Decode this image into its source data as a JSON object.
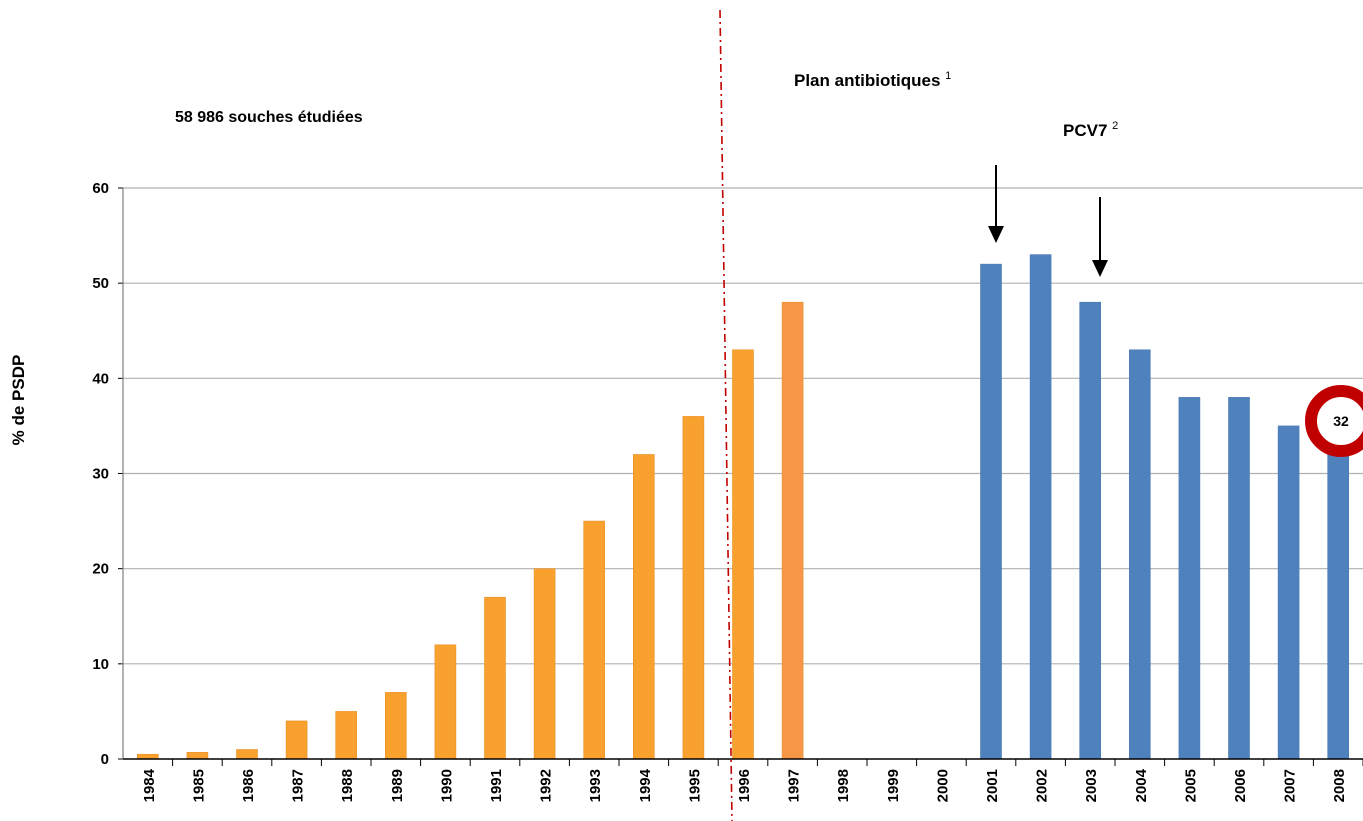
{
  "chart_data": {
    "type": "bar",
    "ylabel": "% de PSDP",
    "ylim": [
      0,
      60
    ],
    "yticks": [
      0,
      10,
      20,
      30,
      40,
      50,
      60
    ],
    "grid": true,
    "categories": [
      "1984",
      "1985",
      "1986",
      "1987",
      "1988",
      "1989",
      "1990",
      "1991",
      "1992",
      "1993",
      "1994",
      "1995",
      "1996",
      "1997",
      "1998",
      "1999",
      "2000",
      "2001",
      "2002",
      "2003",
      "2004",
      "2005",
      "2006",
      "2007",
      "2008"
    ],
    "values": [
      0.5,
      0.7,
      1,
      4,
      5,
      7,
      12,
      17,
      20,
      25,
      32,
      36,
      43,
      48,
      null,
      null,
      null,
      52,
      53,
      48,
      43,
      38,
      38,
      35,
      32
    ],
    "bar_colors": {
      "orange": "#F9A12E",
      "light_orange": "#F79646",
      "blue": "#4F81BD"
    },
    "annotations": {
      "strains": "58 986 souches étudiées",
      "plan_text": "Plan antibiotiques",
      "plan_sup": "1",
      "pcv_text": "PCV7",
      "pcv_sup": "2",
      "highlight_value": "32"
    },
    "highlight_color": "#C00000",
    "divider_color": "#C00000"
  }
}
